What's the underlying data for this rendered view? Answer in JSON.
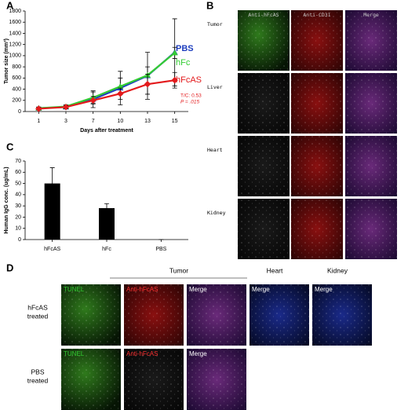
{
  "panel_labels": [
    "A",
    "B",
    "C",
    "D"
  ],
  "chart_data": [
    {
      "type": "line",
      "x_label": "Days after treatment",
      "y_label": "Tumor size (mm³)",
      "categories": [
        "1",
        "3",
        "7",
        "10",
        "13",
        "15"
      ],
      "ylim": [
        0,
        1800
      ],
      "yticks": [
        0,
        200,
        400,
        600,
        800,
        1000,
        1200,
        1400,
        1600,
        1800
      ],
      "series": [
        {
          "name": "PBS",
          "color": "#1f3fbf",
          "values": [
            60,
            80,
            220,
            420,
            640,
            1060
          ],
          "errors": [
            20,
            30,
            150,
            300,
            420,
            600
          ]
        },
        {
          "name": "hFc",
          "color": "#33cc33",
          "values": [
            60,
            90,
            250,
            450,
            650,
            1050
          ],
          "errors": [
            20,
            30,
            100,
            150,
            150,
            100
          ]
        },
        {
          "name": "hFcAS",
          "color": "#e31a1c",
          "values": [
            50,
            80,
            200,
            320,
            490,
            560
          ],
          "errors": [
            20,
            30,
            70,
            100,
            180,
            140
          ]
        }
      ],
      "annotations": [
        "T/C: 0.53",
        "P = .015"
      ]
    },
    {
      "type": "bar",
      "y_label": "Human IgG conc. (ug/mL)",
      "categories": [
        "hFcAS",
        "hFc",
        "PBS"
      ],
      "values": [
        50,
        28,
        0
      ],
      "errors": [
        14,
        4,
        0
      ],
      "color": "#000000",
      "ylim": [
        0,
        70
      ],
      "yticks": [
        0,
        10,
        20,
        30,
        40,
        50,
        60,
        70
      ]
    }
  ],
  "panel_b": {
    "columns": [
      "Anti-hFcAS",
      "Anti-CD31",
      "Merge"
    ],
    "rows": [
      "Tumor",
      "Liver",
      "Heart",
      "Kidney"
    ]
  },
  "panel_d": {
    "headers": [
      "Tumor",
      "Heart",
      "Kidney"
    ],
    "rows": [
      [
        "hFcAS",
        "treated"
      ],
      [
        "PBS",
        "treated"
      ]
    ],
    "image_labels": [
      [
        "TUNEL",
        "Anti-hFcAS",
        "Merge",
        "Merge",
        "Merge"
      ],
      [
        "TUNEL",
        "Anti-hFcAS",
        "Merge"
      ]
    ]
  }
}
